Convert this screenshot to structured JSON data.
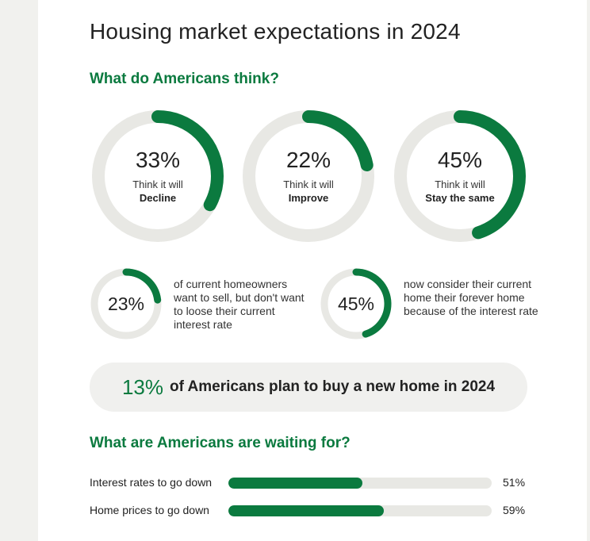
{
  "title": "Housing market expectations in 2024",
  "section1": {
    "heading": "What do Americans think?",
    "donuts": [
      {
        "pct_label": "33%",
        "value": 33,
        "line1": "Think it will",
        "line2": "Decline"
      },
      {
        "pct_label": "22%",
        "value": 22,
        "line1": "Think it will",
        "line2": "Improve"
      },
      {
        "pct_label": "45%",
        "value": 45,
        "line1": "Think it will",
        "line2": "Stay the same"
      }
    ],
    "small_stats": [
      {
        "pct_label": "23%",
        "value": 23,
        "text": "of current homeowners want to sell, but don't want to loose their current interest rate"
      },
      {
        "pct_label": "45%",
        "value": 45,
        "text": "now consider their current home their forever home because of the interest rate"
      }
    ]
  },
  "callout": {
    "pct_label": "13%",
    "text": "of Americans plan to buy a new home in 2024"
  },
  "section2": {
    "heading": "What are Americans are waiting for?",
    "bars": [
      {
        "label": "Interest rates to go down",
        "value": 51,
        "value_label": "51%"
      },
      {
        "label": "Home prices to go down",
        "value": 59,
        "value_label": "59%"
      }
    ]
  },
  "colors": {
    "accent": "#0b7a3f",
    "track": "#e8e8e4",
    "callout_bg": "#f0f0ee"
  }
}
